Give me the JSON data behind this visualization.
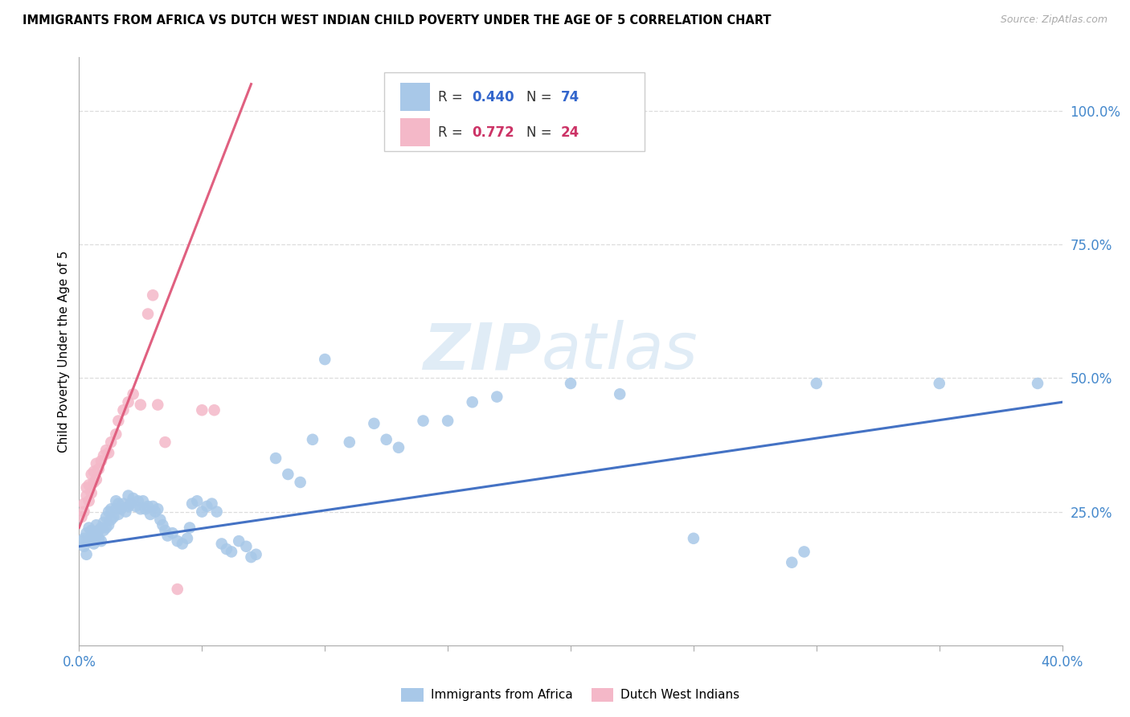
{
  "title": "IMMIGRANTS FROM AFRICA VS DUTCH WEST INDIAN CHILD POVERTY UNDER THE AGE OF 5 CORRELATION CHART",
  "source": "Source: ZipAtlas.com",
  "ylabel": "Child Poverty Under the Age of 5",
  "ylabel_right_ticks": [
    "100.0%",
    "75.0%",
    "50.0%",
    "25.0%"
  ],
  "ylabel_right_vals": [
    1.0,
    0.75,
    0.5,
    0.25
  ],
  "xlim": [
    0.0,
    0.4
  ],
  "ylim": [
    0.0,
    1.1
  ],
  "color_blue": "#a8c8e8",
  "color_pink": "#f4b8c8",
  "line_color_blue": "#4472c4",
  "line_color_pink": "#e06080",
  "watermark_zip": "ZIP",
  "watermark_atlas": "atlas",
  "blue_scatter": [
    [
      0.001,
      0.195
    ],
    [
      0.002,
      0.185
    ],
    [
      0.002,
      0.2
    ],
    [
      0.003,
      0.17
    ],
    [
      0.003,
      0.21
    ],
    [
      0.004,
      0.195
    ],
    [
      0.004,
      0.22
    ],
    [
      0.005,
      0.2
    ],
    [
      0.005,
      0.215
    ],
    [
      0.006,
      0.19
    ],
    [
      0.006,
      0.21
    ],
    [
      0.007,
      0.205
    ],
    [
      0.007,
      0.225
    ],
    [
      0.008,
      0.215
    ],
    [
      0.008,
      0.2
    ],
    [
      0.009,
      0.22
    ],
    [
      0.009,
      0.195
    ],
    [
      0.01,
      0.215
    ],
    [
      0.01,
      0.23
    ],
    [
      0.011,
      0.22
    ],
    [
      0.011,
      0.24
    ],
    [
      0.012,
      0.225
    ],
    [
      0.012,
      0.25
    ],
    [
      0.013,
      0.235
    ],
    [
      0.013,
      0.255
    ],
    [
      0.014,
      0.24
    ],
    [
      0.015,
      0.255
    ],
    [
      0.015,
      0.27
    ],
    [
      0.016,
      0.245
    ],
    [
      0.016,
      0.265
    ],
    [
      0.017,
      0.255
    ],
    [
      0.018,
      0.265
    ],
    [
      0.019,
      0.25
    ],
    [
      0.02,
      0.26
    ],
    [
      0.02,
      0.28
    ],
    [
      0.021,
      0.265
    ],
    [
      0.022,
      0.275
    ],
    [
      0.023,
      0.26
    ],
    [
      0.024,
      0.27
    ],
    [
      0.025,
      0.255
    ],
    [
      0.026,
      0.27
    ],
    [
      0.027,
      0.255
    ],
    [
      0.028,
      0.26
    ],
    [
      0.029,
      0.245
    ],
    [
      0.03,
      0.26
    ],
    [
      0.031,
      0.25
    ],
    [
      0.032,
      0.255
    ],
    [
      0.033,
      0.235
    ],
    [
      0.034,
      0.225
    ],
    [
      0.035,
      0.215
    ],
    [
      0.036,
      0.205
    ],
    [
      0.038,
      0.21
    ],
    [
      0.04,
      0.195
    ],
    [
      0.042,
      0.19
    ],
    [
      0.044,
      0.2
    ],
    [
      0.045,
      0.22
    ],
    [
      0.046,
      0.265
    ],
    [
      0.048,
      0.27
    ],
    [
      0.05,
      0.25
    ],
    [
      0.052,
      0.26
    ],
    [
      0.054,
      0.265
    ],
    [
      0.056,
      0.25
    ],
    [
      0.058,
      0.19
    ],
    [
      0.06,
      0.18
    ],
    [
      0.062,
      0.175
    ],
    [
      0.065,
      0.195
    ],
    [
      0.068,
      0.185
    ],
    [
      0.07,
      0.165
    ],
    [
      0.072,
      0.17
    ],
    [
      0.08,
      0.35
    ],
    [
      0.085,
      0.32
    ],
    [
      0.09,
      0.305
    ],
    [
      0.095,
      0.385
    ],
    [
      0.1,
      0.535
    ],
    [
      0.11,
      0.38
    ],
    [
      0.12,
      0.415
    ],
    [
      0.125,
      0.385
    ],
    [
      0.13,
      0.37
    ],
    [
      0.14,
      0.42
    ],
    [
      0.15,
      0.42
    ],
    [
      0.16,
      0.455
    ],
    [
      0.17,
      0.465
    ],
    [
      0.2,
      0.49
    ],
    [
      0.22,
      0.47
    ],
    [
      0.25,
      0.2
    ],
    [
      0.29,
      0.155
    ],
    [
      0.295,
      0.175
    ],
    [
      0.3,
      0.49
    ],
    [
      0.35,
      0.49
    ],
    [
      0.39,
      0.49
    ]
  ],
  "pink_scatter": [
    [
      0.001,
      0.24
    ],
    [
      0.002,
      0.25
    ],
    [
      0.002,
      0.265
    ],
    [
      0.003,
      0.28
    ],
    [
      0.003,
      0.295
    ],
    [
      0.004,
      0.27
    ],
    [
      0.004,
      0.3
    ],
    [
      0.005,
      0.285
    ],
    [
      0.005,
      0.32
    ],
    [
      0.006,
      0.305
    ],
    [
      0.006,
      0.325
    ],
    [
      0.007,
      0.31
    ],
    [
      0.007,
      0.34
    ],
    [
      0.008,
      0.33
    ],
    [
      0.009,
      0.345
    ],
    [
      0.01,
      0.355
    ],
    [
      0.011,
      0.365
    ],
    [
      0.012,
      0.36
    ],
    [
      0.013,
      0.38
    ],
    [
      0.015,
      0.395
    ],
    [
      0.016,
      0.42
    ],
    [
      0.018,
      0.44
    ],
    [
      0.02,
      0.455
    ],
    [
      0.022,
      0.47
    ],
    [
      0.028,
      0.62
    ],
    [
      0.03,
      0.655
    ],
    [
      0.032,
      0.45
    ],
    [
      0.04,
      0.105
    ],
    [
      0.035,
      0.38
    ],
    [
      0.025,
      0.45
    ],
    [
      0.05,
      0.44
    ],
    [
      0.055,
      0.44
    ]
  ],
  "blue_trendline_x": [
    0.0,
    0.4
  ],
  "blue_trendline_y": [
    0.185,
    0.455
  ],
  "pink_trendline_x": [
    0.0,
    0.07
  ],
  "pink_trendline_y": [
    0.22,
    1.05
  ],
  "xtick_positions": [
    0.0,
    0.05,
    0.1,
    0.15,
    0.2,
    0.25,
    0.3,
    0.35,
    0.4
  ],
  "grid_color": "#dddddd",
  "spine_color": "#aaaaaa"
}
